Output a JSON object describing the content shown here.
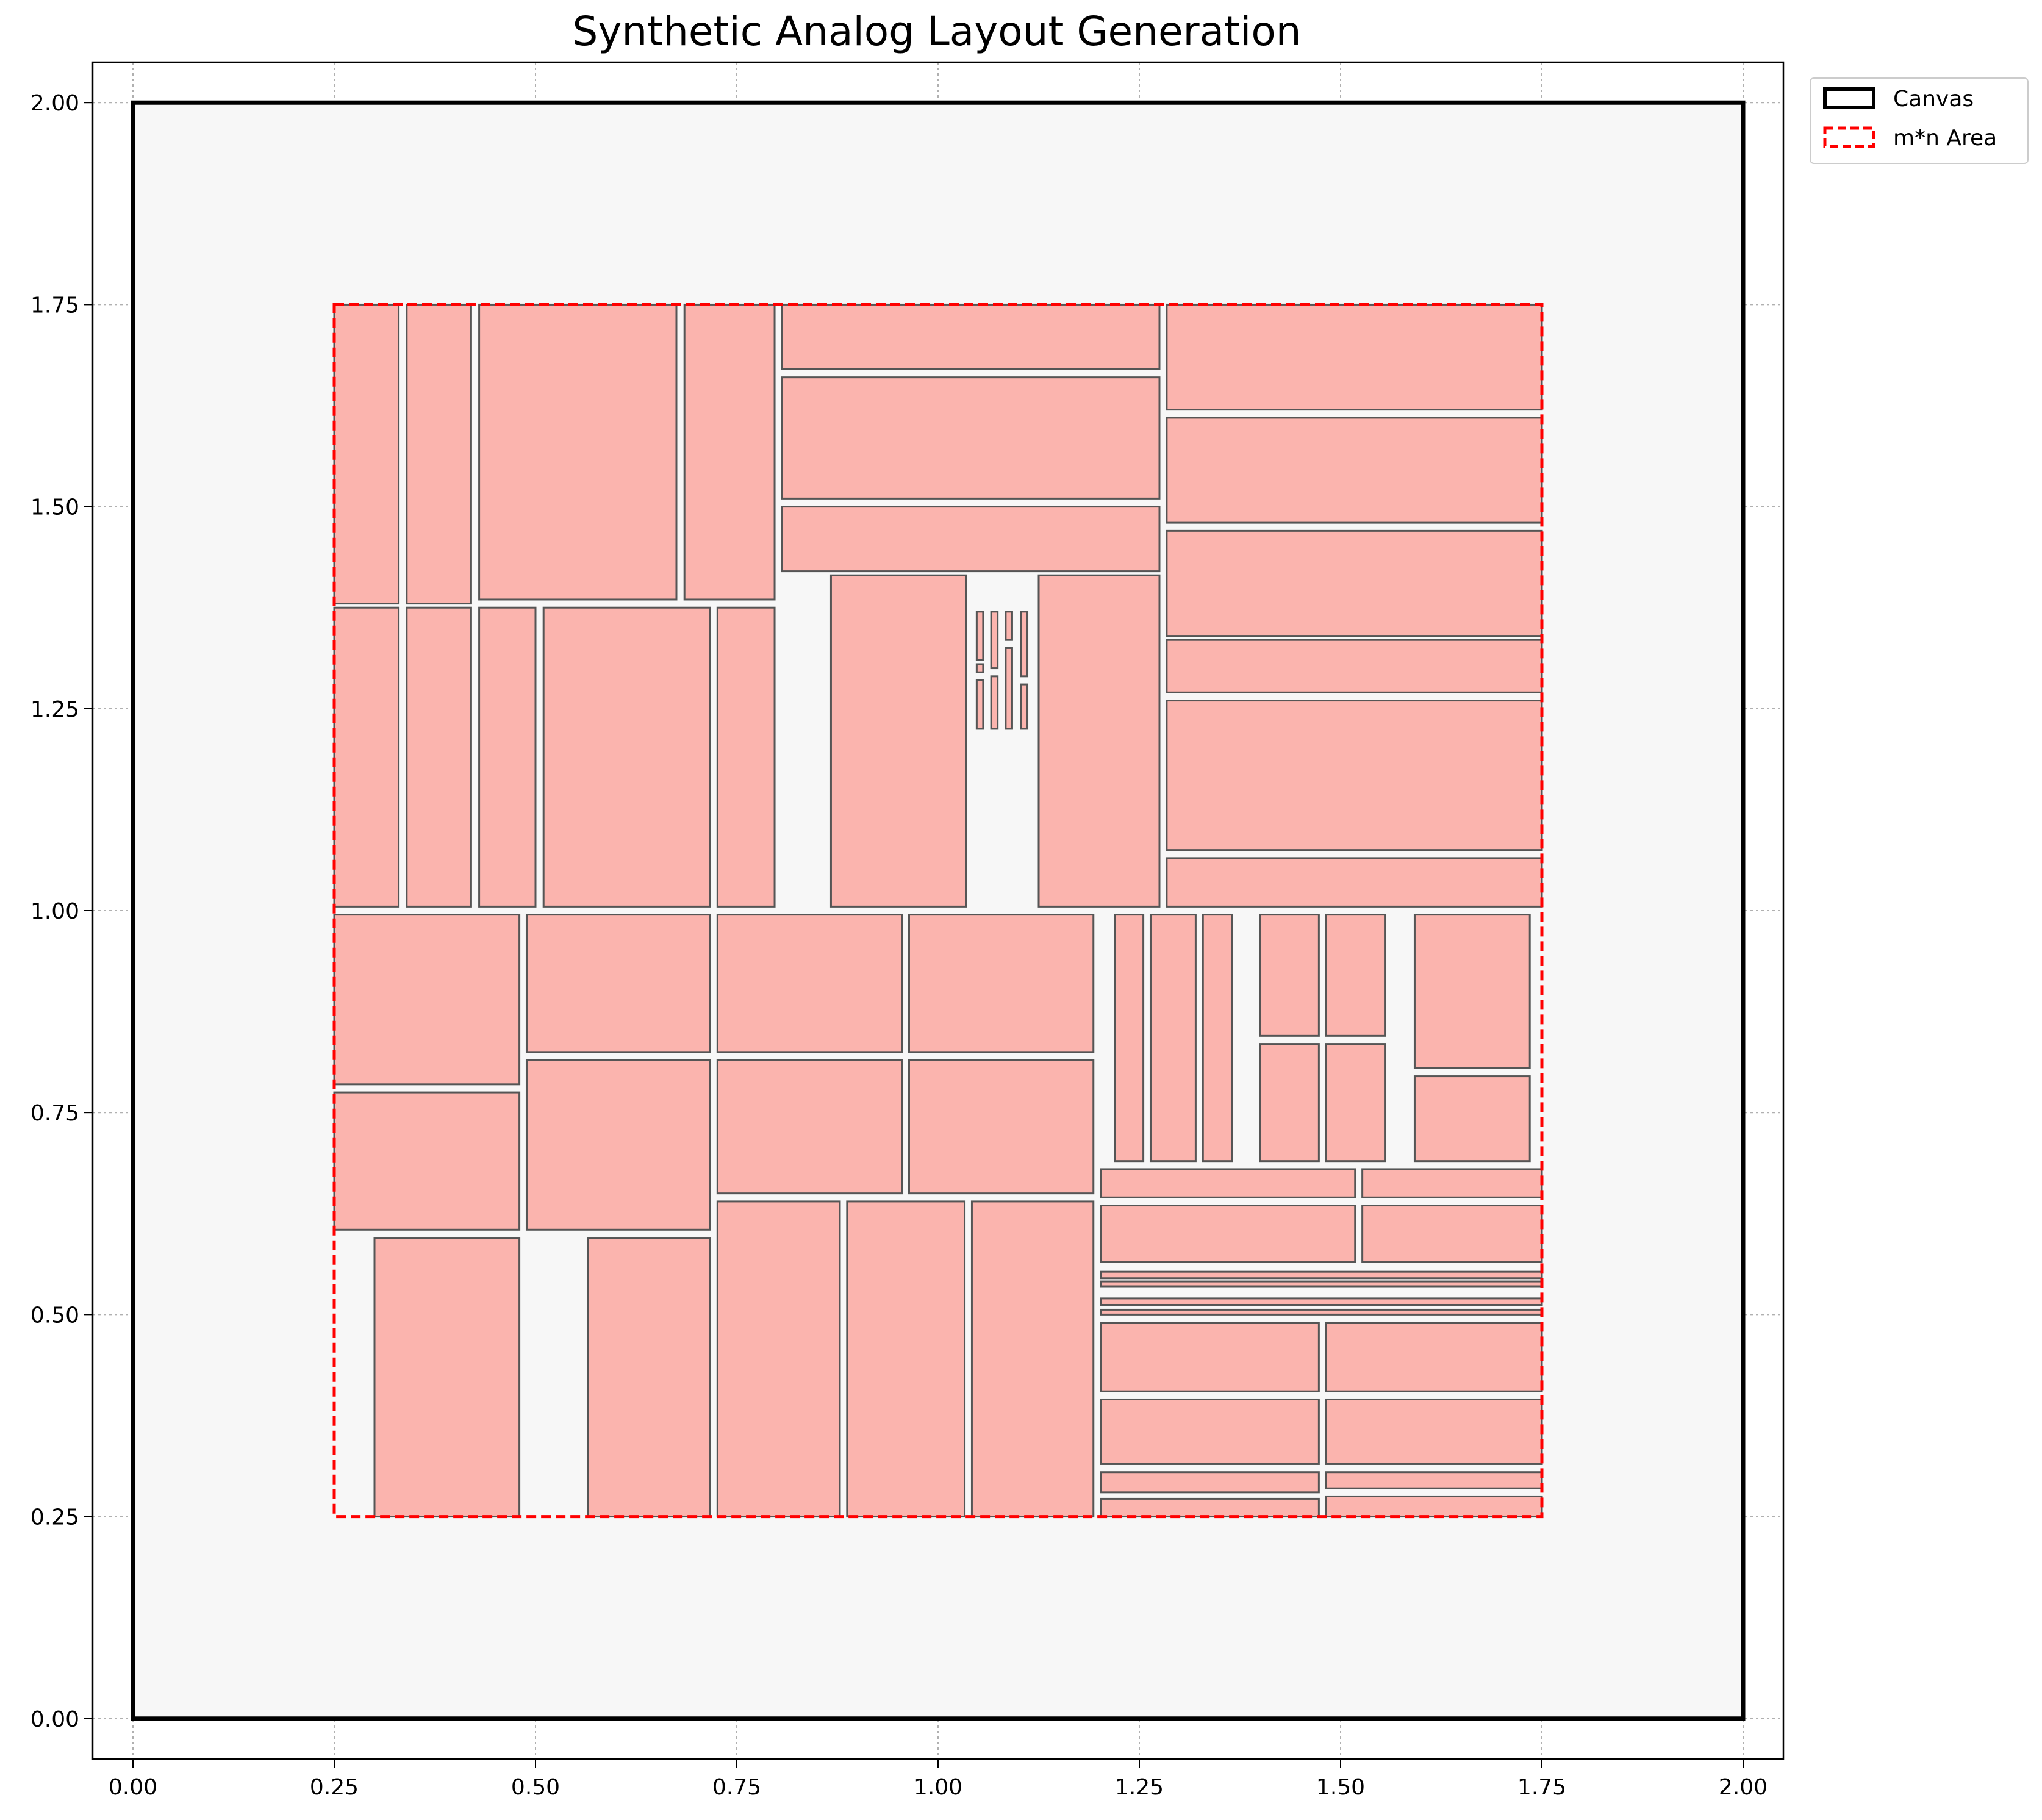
{
  "chart_data": {
    "type": "layout",
    "title": "Synthetic Analog Layout Generation",
    "xlabel": "",
    "ylabel": "",
    "xlim": [
      -0.05,
      2.05
    ],
    "ylim": [
      -0.05,
      2.05
    ],
    "x_ticks": [
      "0.00",
      "0.25",
      "0.50",
      "0.75",
      "1.00",
      "1.25",
      "1.50",
      "1.75",
      "2.00"
    ],
    "y_ticks": [
      "0.00",
      "0.25",
      "0.50",
      "0.75",
      "1.00",
      "1.25",
      "1.50",
      "1.75",
      "2.00"
    ],
    "grid": true,
    "legend_position": "outside-top-right",
    "legend": [
      {
        "label": "Canvas",
        "style": "solid",
        "color": "#000000"
      },
      {
        "label": "m*n Area",
        "style": "dashed",
        "color": "#ff0000"
      }
    ],
    "canvas": {
      "x0": 0,
      "y0": 0,
      "x1": 2,
      "y1": 2
    },
    "area": {
      "x0": 0.25,
      "y0": 0.25,
      "x1": 1.75,
      "y1": 1.75
    },
    "colors": {
      "canvas_fill": "#f7f7f7",
      "block_fill": "#fbb4ae",
      "block_edge": "#555555",
      "area_edge": "#ff0000"
    },
    "blocks": [
      [
        0.25,
        1.38,
        0.33,
        1.75
      ],
      [
        0.34,
        1.38,
        0.42,
        1.75
      ],
      [
        0.43,
        1.385,
        0.675,
        1.75
      ],
      [
        0.685,
        1.385,
        0.797,
        1.75
      ],
      [
        0.806,
        1.67,
        1.275,
        1.75
      ],
      [
        0.806,
        1.51,
        1.275,
        1.66
      ],
      [
        0.806,
        1.42,
        1.275,
        1.5
      ],
      [
        1.284,
        1.62,
        1.75,
        1.75
      ],
      [
        1.284,
        1.48,
        1.75,
        1.61
      ],
      [
        1.284,
        1.34,
        1.75,
        1.47
      ],
      [
        1.284,
        1.27,
        1.75,
        1.335
      ],
      [
        1.284,
        1.075,
        1.75,
        1.26
      ],
      [
        1.284,
        1.005,
        1.75,
        1.065
      ],
      [
        0.25,
        1.005,
        0.33,
        1.375
      ],
      [
        0.34,
        1.005,
        0.42,
        1.375
      ],
      [
        0.43,
        1.005,
        0.5,
        1.375
      ],
      [
        0.51,
        1.005,
        0.717,
        1.375
      ],
      [
        0.726,
        1.005,
        0.797,
        1.375
      ],
      [
        0.867,
        1.005,
        1.035,
        1.415
      ],
      [
        1.125,
        1.005,
        1.275,
        1.415
      ],
      [
        1.048,
        1.31,
        1.056,
        1.37
      ],
      [
        1.048,
        1.295,
        1.056,
        1.305
      ],
      [
        1.048,
        1.225,
        1.056,
        1.285
      ],
      [
        1.066,
        1.3,
        1.074,
        1.37
      ],
      [
        1.066,
        1.225,
        1.074,
        1.29
      ],
      [
        1.084,
        1.335,
        1.092,
        1.37
      ],
      [
        1.084,
        1.225,
        1.092,
        1.325
      ],
      [
        1.103,
        1.29,
        1.111,
        1.37
      ],
      [
        1.103,
        1.225,
        1.111,
        1.28
      ],
      [
        0.25,
        0.785,
        0.48,
        0.995
      ],
      [
        0.489,
        0.825,
        0.717,
        0.995
      ],
      [
        0.726,
        0.825,
        0.955,
        0.995
      ],
      [
        0.964,
        0.825,
        1.193,
        0.995
      ],
      [
        0.25,
        0.605,
        0.48,
        0.775
      ],
      [
        0.489,
        0.605,
        0.717,
        0.815
      ],
      [
        0.726,
        0.65,
        0.955,
        0.815
      ],
      [
        0.964,
        0.65,
        1.193,
        0.815
      ],
      [
        1.22,
        0.69,
        1.255,
        0.995
      ],
      [
        1.264,
        0.69,
        1.32,
        0.995
      ],
      [
        1.329,
        0.69,
        1.365,
        0.995
      ],
      [
        1.4,
        0.845,
        1.473,
        0.995
      ],
      [
        1.482,
        0.845,
        1.555,
        0.995
      ],
      [
        1.4,
        0.69,
        1.473,
        0.835
      ],
      [
        1.482,
        0.69,
        1.555,
        0.835
      ],
      [
        1.592,
        0.805,
        1.735,
        0.995
      ],
      [
        1.592,
        0.69,
        1.735,
        0.795
      ],
      [
        1.202,
        0.645,
        1.518,
        0.68
      ],
      [
        1.527,
        0.645,
        1.75,
        0.68
      ],
      [
        1.202,
        0.565,
        1.518,
        0.635
      ],
      [
        1.527,
        0.565,
        1.75,
        0.635
      ],
      [
        1.202,
        0.545,
        1.75,
        0.553
      ],
      [
        1.202,
        0.535,
        1.75,
        0.541
      ],
      [
        1.202,
        0.512,
        1.75,
        0.52
      ],
      [
        1.202,
        0.5,
        1.75,
        0.506
      ],
      [
        0.3,
        0.25,
        0.48,
        0.595
      ],
      [
        0.565,
        0.25,
        0.717,
        0.595
      ],
      [
        0.726,
        0.25,
        0.878,
        0.64
      ],
      [
        0.887,
        0.25,
        1.033,
        0.64
      ],
      [
        1.042,
        0.25,
        1.193,
        0.64
      ],
      [
        1.202,
        0.405,
        1.473,
        0.49
      ],
      [
        1.482,
        0.405,
        1.75,
        0.49
      ],
      [
        1.202,
        0.315,
        1.473,
        0.395
      ],
      [
        1.482,
        0.315,
        1.75,
        0.395
      ],
      [
        1.202,
        0.28,
        1.473,
        0.305
      ],
      [
        1.482,
        0.285,
        1.75,
        0.305
      ],
      [
        1.202,
        0.25,
        1.473,
        0.272
      ],
      [
        1.482,
        0.25,
        1.75,
        0.275
      ]
    ]
  }
}
